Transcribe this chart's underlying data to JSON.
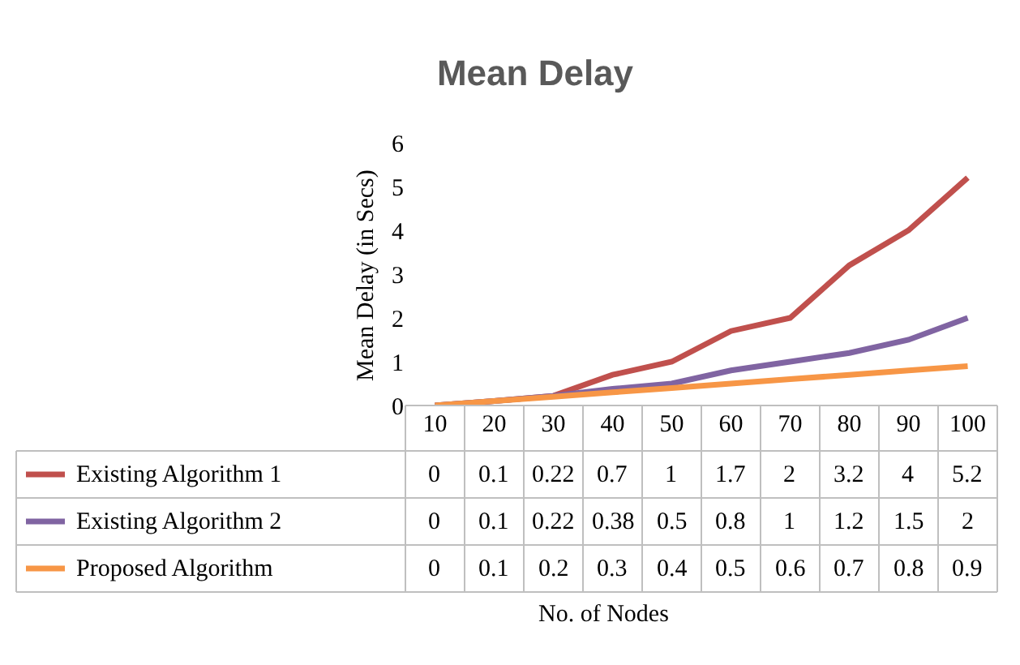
{
  "chart_data": {
    "type": "line",
    "title": "Mean Delay",
    "annotations": [
      "No. of Nodes"
    ],
    "ylabel": "Mean Delay (in Secs)",
    "categories": [
      "10",
      "20",
      "30",
      "40",
      "50",
      "60",
      "70",
      "80",
      "90",
      "100"
    ],
    "series": [
      {
        "name": "Existing Algorithm 1",
        "color": "#c0504d",
        "values": [
          0,
          0.1,
          0.22,
          0.7,
          1,
          1.7,
          2,
          3.2,
          4,
          5.2
        ]
      },
      {
        "name": "Existing Algorithm 2",
        "color": "#8064a2",
        "values": [
          0,
          0.1,
          0.22,
          0.38,
          0.5,
          0.8,
          1,
          1.2,
          1.5,
          2
        ]
      },
      {
        "name": "Proposed Algorithm",
        "color": "#f79646",
        "values": [
          0,
          0.1,
          0.2,
          0.3,
          0.4,
          0.5,
          0.6,
          0.7,
          0.8,
          0.9
        ]
      }
    ],
    "ylim": [
      0,
      6
    ],
    "yticks": [
      0,
      1,
      2,
      3,
      4,
      5,
      6
    ],
    "grid": false,
    "legend": "bottom",
    "data_labels": true,
    "marker": "none",
    "line_style": "solid"
  }
}
